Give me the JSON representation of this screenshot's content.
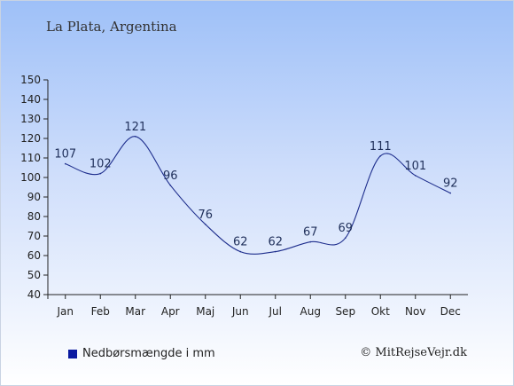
{
  "header": {
    "title": "La Plata, Argentina"
  },
  "colors": {
    "line": "#1d2d8c",
    "legend_swatch": "#0a1aa0"
  },
  "chart_data": {
    "type": "line",
    "categories": [
      "Jan",
      "Feb",
      "Mar",
      "Apr",
      "Maj",
      "Jun",
      "Jul",
      "Aug",
      "Sep",
      "Okt",
      "Nov",
      "Dec"
    ],
    "series": [
      {
        "name": "Nedbørsmængde i mm",
        "values": [
          107,
          102,
          121,
          96,
          76,
          62,
          62,
          67,
          69,
          111,
          101,
          92
        ]
      }
    ],
    "ylim": [
      40,
      150
    ],
    "yticks": [
      40,
      50,
      60,
      70,
      80,
      90,
      100,
      110,
      120,
      130,
      140,
      150
    ],
    "grid": false,
    "legend_position": "bottom-left"
  },
  "footer": {
    "credit": "© MitRejseVejr.dk"
  }
}
